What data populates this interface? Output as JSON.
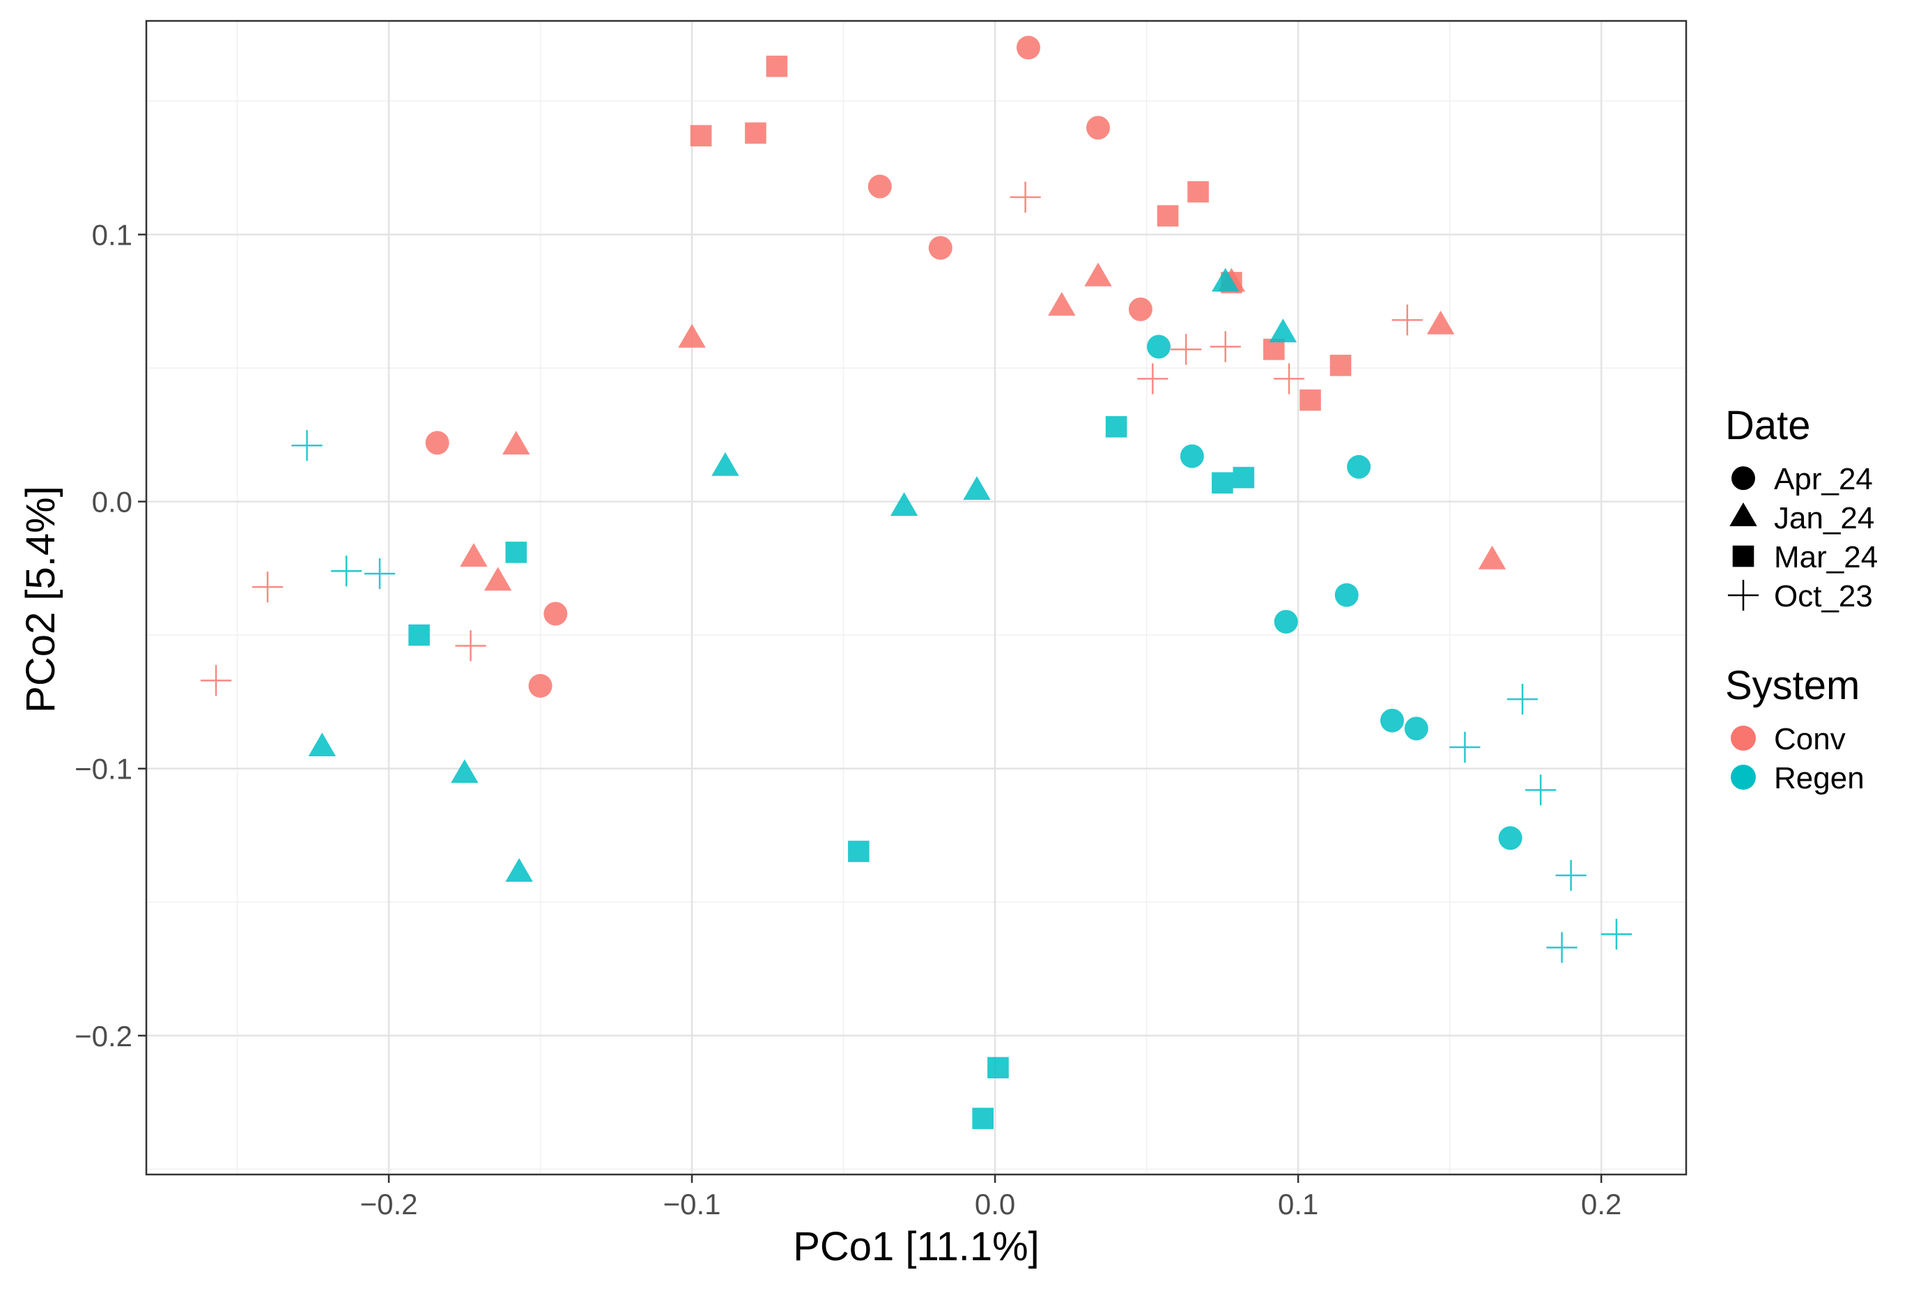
{
  "chart_data": {
    "type": "scatter",
    "title": "",
    "xlabel": "PCo1 [11.1%]",
    "ylabel": "PCo2 [5.4%]",
    "xlim": [
      -0.28,
      0.228
    ],
    "ylim": [
      -0.252,
      0.18
    ],
    "x_ticks": [
      -0.2,
      -0.1,
      0.0,
      0.1,
      0.2
    ],
    "x_tick_labels": [
      "−0.2",
      "−0.1",
      "0.0",
      "0.1",
      "0.2"
    ],
    "y_ticks": [
      -0.2,
      -0.1,
      0.0,
      0.1
    ],
    "y_tick_labels": [
      "−0.2",
      "−0.1",
      "0.0",
      "0.1"
    ],
    "grid": true,
    "legend": {
      "position": "right",
      "shape_title": "Date",
      "shapes": [
        {
          "label": "Apr_24",
          "shape": "circle"
        },
        {
          "label": "Jan_24",
          "shape": "triangle"
        },
        {
          "label": "Mar_24",
          "shape": "square"
        },
        {
          "label": "Oct_23",
          "shape": "cross"
        }
      ],
      "color_title": "System",
      "colors": [
        {
          "label": "Conv",
          "color": "#F8766D"
        },
        {
          "label": "Regen",
          "color": "#00BFC4"
        }
      ]
    },
    "series": [
      {
        "name": "Conv",
        "color": "#F8766D",
        "points": [
          {
            "date": "Apr_24",
            "x": 0.011,
            "y": 0.17
          },
          {
            "date": "Apr_24",
            "x": 0.034,
            "y": 0.14
          },
          {
            "date": "Apr_24",
            "x": -0.038,
            "y": 0.118
          },
          {
            "date": "Apr_24",
            "x": -0.018,
            "y": 0.095
          },
          {
            "date": "Apr_24",
            "x": 0.048,
            "y": 0.072
          },
          {
            "date": "Apr_24",
            "x": -0.184,
            "y": 0.022
          },
          {
            "date": "Apr_24",
            "x": -0.145,
            "y": -0.042
          },
          {
            "date": "Apr_24",
            "x": -0.15,
            "y": -0.069
          },
          {
            "date": "Jan_24",
            "x": 0.034,
            "y": 0.084
          },
          {
            "date": "Jan_24",
            "x": 0.022,
            "y": 0.073
          },
          {
            "date": "Jan_24",
            "x": 0.078,
            "y": 0.082
          },
          {
            "date": "Jan_24",
            "x": 0.147,
            "y": 0.066
          },
          {
            "date": "Jan_24",
            "x": -0.1,
            "y": 0.061
          },
          {
            "date": "Jan_24",
            "x": -0.158,
            "y": 0.021
          },
          {
            "date": "Jan_24",
            "x": -0.172,
            "y": -0.021
          },
          {
            "date": "Jan_24",
            "x": -0.164,
            "y": -0.03
          },
          {
            "date": "Jan_24",
            "x": 0.164,
            "y": -0.022
          },
          {
            "date": "Mar_24",
            "x": -0.072,
            "y": 0.163
          },
          {
            "date": "Mar_24",
            "x": -0.097,
            "y": 0.137
          },
          {
            "date": "Mar_24",
            "x": -0.079,
            "y": 0.138
          },
          {
            "date": "Mar_24",
            "x": 0.057,
            "y": 0.107
          },
          {
            "date": "Mar_24",
            "x": 0.067,
            "y": 0.116
          },
          {
            "date": "Mar_24",
            "x": 0.078,
            "y": 0.082
          },
          {
            "date": "Mar_24",
            "x": 0.092,
            "y": 0.057
          },
          {
            "date": "Mar_24",
            "x": 0.114,
            "y": 0.051
          },
          {
            "date": "Mar_24",
            "x": 0.104,
            "y": 0.038
          },
          {
            "date": "Oct_23",
            "x": 0.01,
            "y": 0.114
          },
          {
            "date": "Oct_23",
            "x": 0.136,
            "y": 0.068
          },
          {
            "date": "Oct_23",
            "x": 0.063,
            "y": 0.057
          },
          {
            "date": "Oct_23",
            "x": 0.076,
            "y": 0.058
          },
          {
            "date": "Oct_23",
            "x": 0.052,
            "y": 0.046
          },
          {
            "date": "Oct_23",
            "x": 0.097,
            "y": 0.046
          },
          {
            "date": "Oct_23",
            "x": -0.24,
            "y": -0.032
          },
          {
            "date": "Oct_23",
            "x": -0.173,
            "y": -0.054
          },
          {
            "date": "Oct_23",
            "x": -0.257,
            "y": -0.067
          }
        ]
      },
      {
        "name": "Regen",
        "color": "#00BFC4",
        "points": [
          {
            "date": "Apr_24",
            "x": 0.054,
            "y": 0.058
          },
          {
            "date": "Apr_24",
            "x": 0.065,
            "y": 0.017
          },
          {
            "date": "Apr_24",
            "x": 0.12,
            "y": 0.013
          },
          {
            "date": "Apr_24",
            "x": 0.116,
            "y": -0.035
          },
          {
            "date": "Apr_24",
            "x": 0.096,
            "y": -0.045
          },
          {
            "date": "Apr_24",
            "x": 0.131,
            "y": -0.082
          },
          {
            "date": "Apr_24",
            "x": 0.139,
            "y": -0.085
          },
          {
            "date": "Apr_24",
            "x": 0.17,
            "y": -0.126
          },
          {
            "date": "Jan_24",
            "x": 0.076,
            "y": 0.082
          },
          {
            "date": "Jan_24",
            "x": 0.095,
            "y": 0.063
          },
          {
            "date": "Jan_24",
            "x": -0.089,
            "y": 0.013
          },
          {
            "date": "Jan_24",
            "x": -0.006,
            "y": 0.004
          },
          {
            "date": "Jan_24",
            "x": -0.03,
            "y": -0.002
          },
          {
            "date": "Jan_24",
            "x": -0.222,
            "y": -0.092
          },
          {
            "date": "Jan_24",
            "x": -0.175,
            "y": -0.102
          },
          {
            "date": "Jan_24",
            "x": -0.157,
            "y": -0.139
          },
          {
            "date": "Mar_24",
            "x": 0.04,
            "y": 0.028
          },
          {
            "date": "Mar_24",
            "x": 0.075,
            "y": 0.007
          },
          {
            "date": "Mar_24",
            "x": 0.082,
            "y": 0.009
          },
          {
            "date": "Mar_24",
            "x": -0.158,
            "y": -0.019
          },
          {
            "date": "Mar_24",
            "x": -0.19,
            "y": -0.05
          },
          {
            "date": "Mar_24",
            "x": -0.045,
            "y": -0.131
          },
          {
            "date": "Mar_24",
            "x": 0.001,
            "y": -0.212
          },
          {
            "date": "Mar_24",
            "x": -0.004,
            "y": -0.231
          },
          {
            "date": "Oct_23",
            "x": -0.227,
            "y": 0.021
          },
          {
            "date": "Oct_23",
            "x": -0.214,
            "y": -0.026
          },
          {
            "date": "Oct_23",
            "x": -0.203,
            "y": -0.027
          },
          {
            "date": "Oct_23",
            "x": 0.174,
            "y": -0.074
          },
          {
            "date": "Oct_23",
            "x": 0.155,
            "y": -0.092
          },
          {
            "date": "Oct_23",
            "x": 0.18,
            "y": -0.108
          },
          {
            "date": "Oct_23",
            "x": 0.19,
            "y": -0.14
          },
          {
            "date": "Oct_23",
            "x": 0.205,
            "y": -0.162
          },
          {
            "date": "Oct_23",
            "x": 0.187,
            "y": -0.167
          }
        ]
      }
    ]
  }
}
